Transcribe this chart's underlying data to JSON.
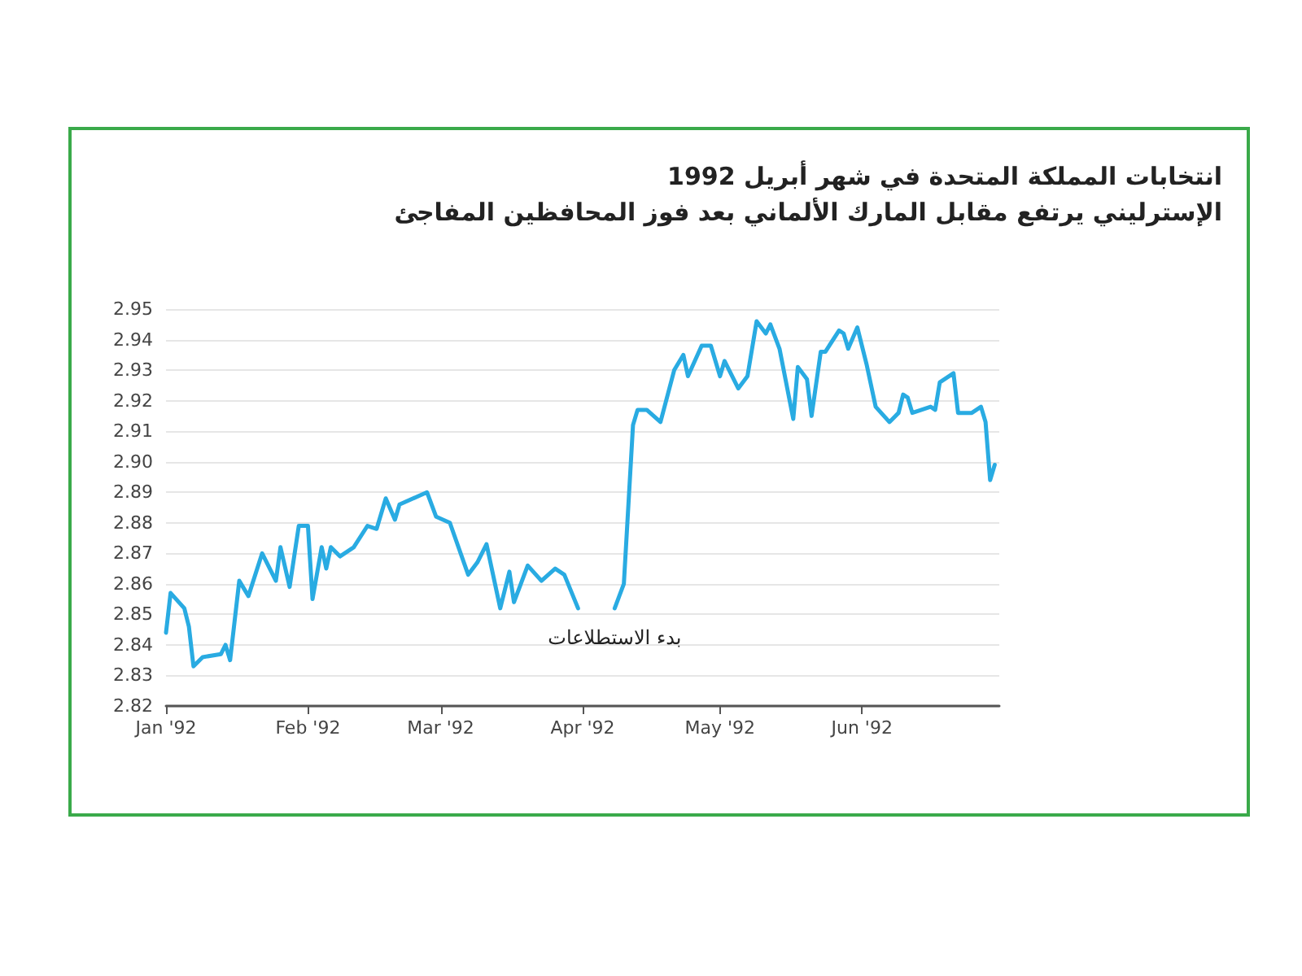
{
  "chart_data": {
    "type": "line",
    "title": "انتخابات المملكة المتحدة في شهر أبريل 1992",
    "subtitle": "الإسترليني يرتفع مقابل المارك الألماني بعد فوز المحافظين المفاجئ",
    "annotations": [
      {
        "text": "بدء الاستطلاعات",
        "x": "1992-04-08",
        "y": 2.852
      }
    ],
    "x": [
      "1992-01-01",
      "1992-01-02",
      "1992-01-05",
      "1992-01-06",
      "1992-01-07",
      "1992-01-09",
      "1992-01-13",
      "1992-01-14",
      "1992-01-15",
      "1992-01-17",
      "1992-01-19",
      "1992-01-22",
      "1992-01-25",
      "1992-01-26",
      "1992-01-28",
      "1992-01-30",
      "1992-02-01",
      "1992-02-02",
      "1992-02-04",
      "1992-02-05",
      "1992-02-06",
      "1992-02-08",
      "1992-02-11",
      "1992-02-14",
      "1992-02-16",
      "1992-02-18",
      "1992-02-20",
      "1992-02-21",
      "1992-02-27",
      "1992-02-29",
      "1992-03-03",
      "1992-03-07",
      "1992-03-09",
      "1992-03-11",
      "1992-03-14",
      "1992-03-16",
      "1992-03-17",
      "1992-03-20",
      "1992-03-23",
      "1992-03-26",
      "1992-03-28",
      "1992-03-31",
      "1992-04-04",
      "1992-04-08",
      "1992-04-10",
      "1992-04-12",
      "1992-04-13",
      "1992-04-15",
      "1992-04-18",
      "1992-04-21",
      "1992-04-23",
      "1992-04-24",
      "1992-04-27",
      "1992-04-29",
      "1992-05-01",
      "1992-05-02",
      "1992-05-05",
      "1992-05-07",
      "1992-05-09",
      "1992-05-11",
      "1992-05-12",
      "1992-05-14",
      "1992-05-17",
      "1992-05-18",
      "1992-05-20",
      "1992-05-21",
      "1992-05-23",
      "1992-05-24",
      "1992-05-27",
      "1992-05-28",
      "1992-05-29",
      "1992-05-31",
      "1992-06-02",
      "1992-06-04",
      "1992-06-07",
      "1992-06-09",
      "1992-06-10",
      "1992-06-11",
      "1992-06-12",
      "1992-06-16",
      "1992-06-17",
      "1992-06-18",
      "1992-06-21",
      "1992-06-22",
      "1992-06-25",
      "1992-06-27",
      "1992-06-28",
      "1992-06-29",
      "1992-06-30"
    ],
    "series": [
      {
        "color": "#29abe2",
        "values": [
          2.844,
          2.857,
          2.852,
          2.846,
          2.833,
          2.836,
          2.837,
          2.84,
          2.835,
          2.861,
          2.856,
          2.87,
          2.861,
          2.872,
          2.859,
          2.879,
          2.879,
          2.855,
          2.872,
          2.865,
          2.872,
          2.869,
          2.872,
          2.879,
          2.878,
          2.888,
          2.881,
          2.886,
          2.89,
          2.882,
          2.88,
          2.863,
          2.867,
          2.873,
          2.852,
          2.864,
          2.854,
          2.866,
          2.861,
          2.865,
          2.863,
          2.852,
          null,
          2.852,
          2.86,
          2.912,
          2.917,
          2.917,
          2.913,
          2.93,
          2.935,
          2.928,
          2.938,
          2.938,
          2.928,
          2.933,
          2.924,
          2.928,
          2.946,
          2.942,
          2.945,
          2.937,
          2.914,
          2.931,
          2.927,
          2.915,
          2.936,
          2.936,
          2.943,
          2.942,
          2.937,
          2.944,
          2.932,
          2.918,
          2.913,
          2.916,
          2.922,
          2.921,
          2.916,
          2.918,
          2.917,
          2.926,
          2.929,
          2.916,
          2.916,
          2.918,
          2.913,
          2.894,
          2.899
        ]
      }
    ],
    "xlim": [
      "1992-01-01",
      "1992-07-01"
    ],
    "xticks": [
      {
        "value": "1992-01-01",
        "label": "Jan '92"
      },
      {
        "value": "1992-02-01",
        "label": "Feb '92"
      },
      {
        "value": "1992-03-01",
        "label": "Mar '92"
      },
      {
        "value": "1992-04-01",
        "label": "Apr '92"
      },
      {
        "value": "1992-05-01",
        "label": "May '92"
      },
      {
        "value": "1992-06-01",
        "label": "Jun '92"
      }
    ],
    "ylim": [
      2.82,
      2.95
    ],
    "yticks": [
      2.82,
      2.83,
      2.84,
      2.85,
      2.86,
      2.87,
      2.88,
      2.89,
      {
        "value": 2.9,
        "label": "2.90"
      },
      2.91,
      2.92,
      2.93,
      2.94,
      2.95
    ],
    "grid": "y",
    "marker": "none",
    "line_style": "solid"
  }
}
